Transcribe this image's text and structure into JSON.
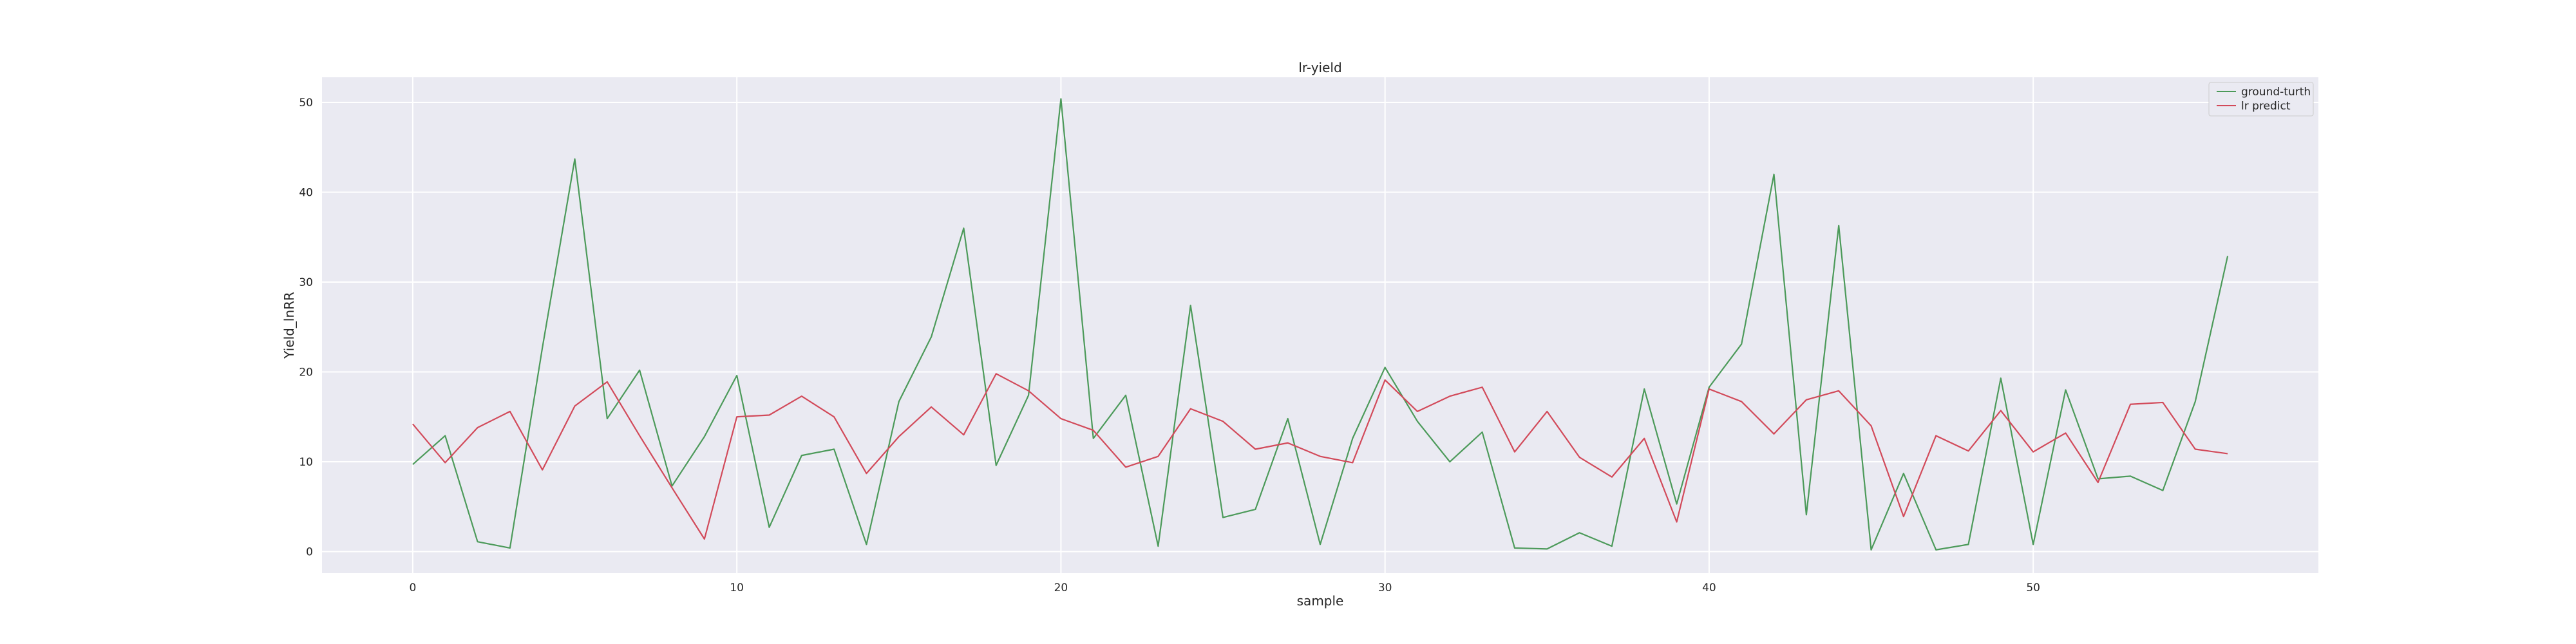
{
  "chart_data": {
    "type": "line",
    "title": "lr-yield",
    "xlabel": "sample",
    "ylabel": "Yield_lnRR",
    "xlim": [
      -2.8,
      58.8
    ],
    "ylim": [
      -2.4,
      52.8
    ],
    "xticks": [
      0,
      10,
      20,
      30,
      40,
      50
    ],
    "yticks": [
      0,
      10,
      20,
      30,
      40,
      50
    ],
    "grid": true,
    "legend_position": "top-right",
    "series": [
      {
        "name": "ground-turth",
        "color": "#4c9a5a",
        "values": [
          9.7,
          12.9,
          1.1,
          0.4,
          22.7,
          43.7,
          14.8,
          20.2,
          7.3,
          12.8,
          19.6,
          2.7,
          10.7,
          11.4,
          0.8,
          16.7,
          23.9,
          36.0,
          9.6,
          17.4,
          50.4,
          12.6,
          17.4,
          0.6,
          27.4,
          3.8,
          4.7,
          14.8,
          0.8,
          12.6,
          20.5,
          14.5,
          10.0,
          13.3,
          0.4,
          0.3,
          2.1,
          0.6,
          18.1,
          5.3,
          18.3,
          23.1,
          42.0,
          4.1,
          36.3,
          0.2,
          8.7,
          0.2,
          0.8,
          19.3,
          0.8,
          18.0,
          8.1,
          8.4,
          6.8,
          16.7,
          32.9
        ]
      },
      {
        "name": "lr predict",
        "color": "#d24a5a",
        "values": [
          14.2,
          9.9,
          13.8,
          15.6,
          9.1,
          16.2,
          18.9,
          12.9,
          7.1,
          1.4,
          15.0,
          15.2,
          17.3,
          15.0,
          8.7,
          12.8,
          16.1,
          13.0,
          19.8,
          17.9,
          14.8,
          13.5,
          9.4,
          10.6,
          15.9,
          14.5,
          11.4,
          12.1,
          10.6,
          9.9,
          19.1,
          15.6,
          17.3,
          18.3,
          11.1,
          15.6,
          10.5,
          8.3,
          12.6,
          3.3,
          18.1,
          16.7,
          13.1,
          16.9,
          17.9,
          14.0,
          3.9,
          12.9,
          11.2,
          15.7,
          11.1,
          13.2,
          7.7,
          16.4,
          16.6,
          11.4,
          10.9
        ]
      }
    ]
  }
}
